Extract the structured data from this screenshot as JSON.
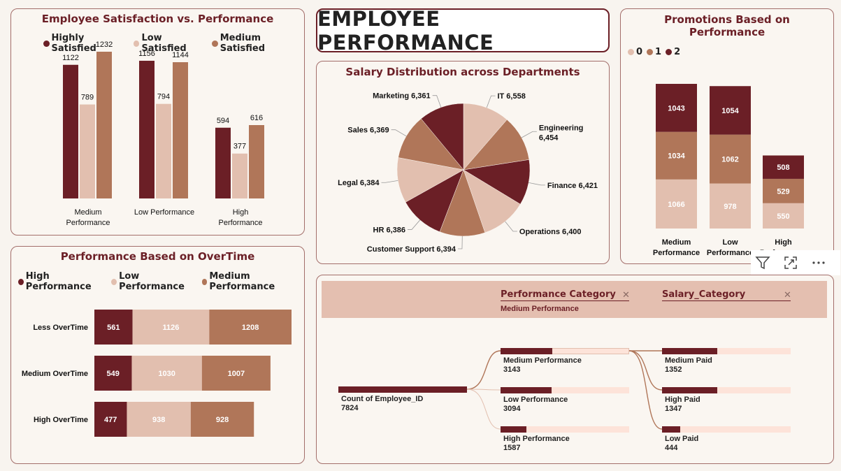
{
  "header": {
    "title": "EMPLOYEE PERFORMANCE"
  },
  "colors": {
    "dark": "#6b1f26",
    "light": "#e2bfaf",
    "medium": "#b07659",
    "accent_bg": "#fde3d9"
  },
  "satisfaction": {
    "title": "Employee Satisfaction vs. Performance",
    "legend": [
      "Highly Satisfied",
      "Low Satisfied",
      "Medium Satisfied"
    ],
    "chart_data": {
      "type": "bar",
      "categories": [
        "Medium Performance",
        "Low Performance",
        "High Performance"
      ],
      "series": [
        {
          "name": "Highly Satisfied",
          "values": [
            1122,
            1156,
            594
          ]
        },
        {
          "name": "Low Satisfied",
          "values": [
            789,
            794,
            377
          ]
        },
        {
          "name": "Medium Satisfied",
          "values": [
            1232,
            1144,
            616
          ]
        }
      ]
    }
  },
  "overtime": {
    "title": "Performance Based on OverTime",
    "legend": [
      "High Performance",
      "Low Performance",
      "Medium Performance"
    ],
    "chart_data": {
      "type": "bar",
      "orientation": "horizontal-stacked",
      "categories": [
        "Less OverTime",
        "Medium OverTime",
        "High OverTime"
      ],
      "series": [
        {
          "name": "High Performance",
          "values": [
            561,
            549,
            477
          ]
        },
        {
          "name": "Low Performance",
          "values": [
            1126,
            1030,
            938
          ]
        },
        {
          "name": "Medium Performance",
          "values": [
            1208,
            1007,
            928
          ]
        }
      ]
    }
  },
  "salary": {
    "title": "Salary Distribution across Departments",
    "chart_data": {
      "type": "pie",
      "categories": [
        "IT",
        "Engineering",
        "Finance",
        "Operations",
        "Customer Support",
        "HR",
        "Legal",
        "Sales",
        "Marketing"
      ],
      "values": [
        6558,
        6454,
        6421,
        6400,
        6394,
        6386,
        6384,
        6369,
        6361
      ],
      "labels": [
        "IT 6,558",
        "Engineering 6,454",
        "Finance 6,421",
        "Operations 6,400",
        "Customer Support 6,394",
        "HR 6,386",
        "Legal 6,384",
        "Sales 6,369",
        "Marketing 6,361"
      ]
    }
  },
  "promotions": {
    "title": "Promotions Based on Performance",
    "legend": [
      "0",
      "1",
      "2"
    ],
    "chart_data": {
      "type": "bar",
      "orientation": "vertical-stacked",
      "categories": [
        "Medium Performance",
        "Low Performance",
        "High Performance"
      ],
      "series": [
        {
          "name": "0",
          "values": [
            1066,
            978,
            550
          ]
        },
        {
          "name": "1",
          "values": [
            1034,
            1062,
            529
          ]
        },
        {
          "name": "2",
          "values": [
            1043,
            1054,
            508
          ]
        }
      ]
    }
  },
  "decomp": {
    "filters": [
      {
        "label": "Performance Category",
        "selected": "Medium Performance"
      },
      {
        "label": "Salary_Category",
        "selected": ""
      }
    ],
    "root": {
      "label": "Count of Employee_ID",
      "value": "7824",
      "fraction": 1.0
    },
    "level1": [
      {
        "label": "Medium Performance",
        "value": "3143",
        "fraction": 0.402
      },
      {
        "label": "Low Performance",
        "value": "3094",
        "fraction": 0.395
      },
      {
        "label": "High Performance",
        "value": "1587",
        "fraction": 0.203
      }
    ],
    "level2": [
      {
        "label": "Medium Paid",
        "value": "1352",
        "fraction": 0.43
      },
      {
        "label": "High Paid",
        "value": "1347",
        "fraction": 0.429
      },
      {
        "label": "Low Paid",
        "value": "444",
        "fraction": 0.141
      }
    ]
  },
  "toolbar": {
    "filter": "filter-icon",
    "focus": "focus-mode-icon",
    "more": "more-options-icon"
  }
}
